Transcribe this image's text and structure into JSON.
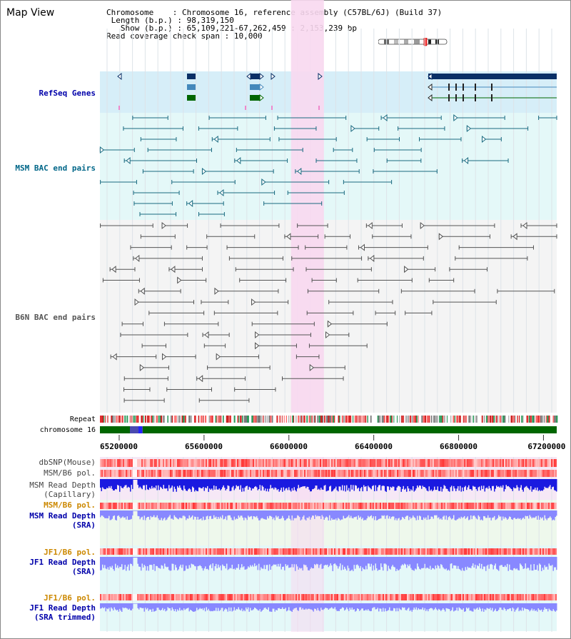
{
  "page": {
    "title": "Map View"
  },
  "info": {
    "chromosome_label": "Chromosome",
    "chromosome_value": "Chromosome 16, reference assembly (C57BL/6J) (Build 37)",
    "length_label": "Length (b.p.)",
    "length_value": "98,319,150",
    "show_label": "Show (b.p.)",
    "show_value": "65,109,221-67,262,459 : 2,153,239 bp",
    "coverage_label": "Read coverage check span",
    "coverage_value": "10,000"
  },
  "tracks": {
    "refseq": "RefSeq Genes",
    "msm_bac": "MSM BAC end pairs",
    "b6n_bac": "B6N BAC end pairs",
    "repeat": "Repeat",
    "chromosome": "chromosome 16",
    "dbsnp": "dbSNP(Mouse)",
    "msm_b6_pol": "MSM/B6 pol.",
    "msm_depth_cap_1": "MSM Read Depth",
    "msm_depth_cap_2": "(Capillary)",
    "msm_b6_pol_2": "MSM/B6 pol.",
    "msm_depth_sra_1": "MSM Read Depth",
    "msm_depth_sra_2": "(SRA)",
    "jf1_b6_pol": "JF1/B6 pol.",
    "jf1_depth_sra_1": "JF1 Read Depth",
    "jf1_depth_sra_2": "(SRA)",
    "jf1_b6_pol_2": "JF1/B6 pol.",
    "jf1_depth_trim_1": "JF1 Read Depth",
    "jf1_depth_trim_2": "(SRA trimmed)"
  },
  "ruler": {
    "ticks": [
      "65200000",
      "65600000",
      "66000000",
      "66400000",
      "66800000",
      "67200000"
    ],
    "values": [
      65200000,
      65600000,
      66000000,
      66400000,
      66800000,
      67200000
    ]
  },
  "view": {
    "start": 65109221,
    "end": 67262459,
    "highlight_start": 66010000,
    "highlight_end": 66165000
  },
  "colors": {
    "refseq_bg": "#d6eef8",
    "msm_bac_bg": "#e4f8f8",
    "b6n_bac_bg": "#f4f4f4",
    "highlight": "#f8d8f0",
    "gene_dark": "#0a2f66",
    "gene_mid": "#4488bb",
    "gene_green": "#006600",
    "msm_pair": "#1a6a80",
    "b6n_pair": "#555555",
    "chromosome": "#006600",
    "depth_dark": "#1a1ae0",
    "depth_light": "#8888ff",
    "label_blue": "#0000aa",
    "label_orange": "#cc8800",
    "label_teal": "#006688"
  }
}
